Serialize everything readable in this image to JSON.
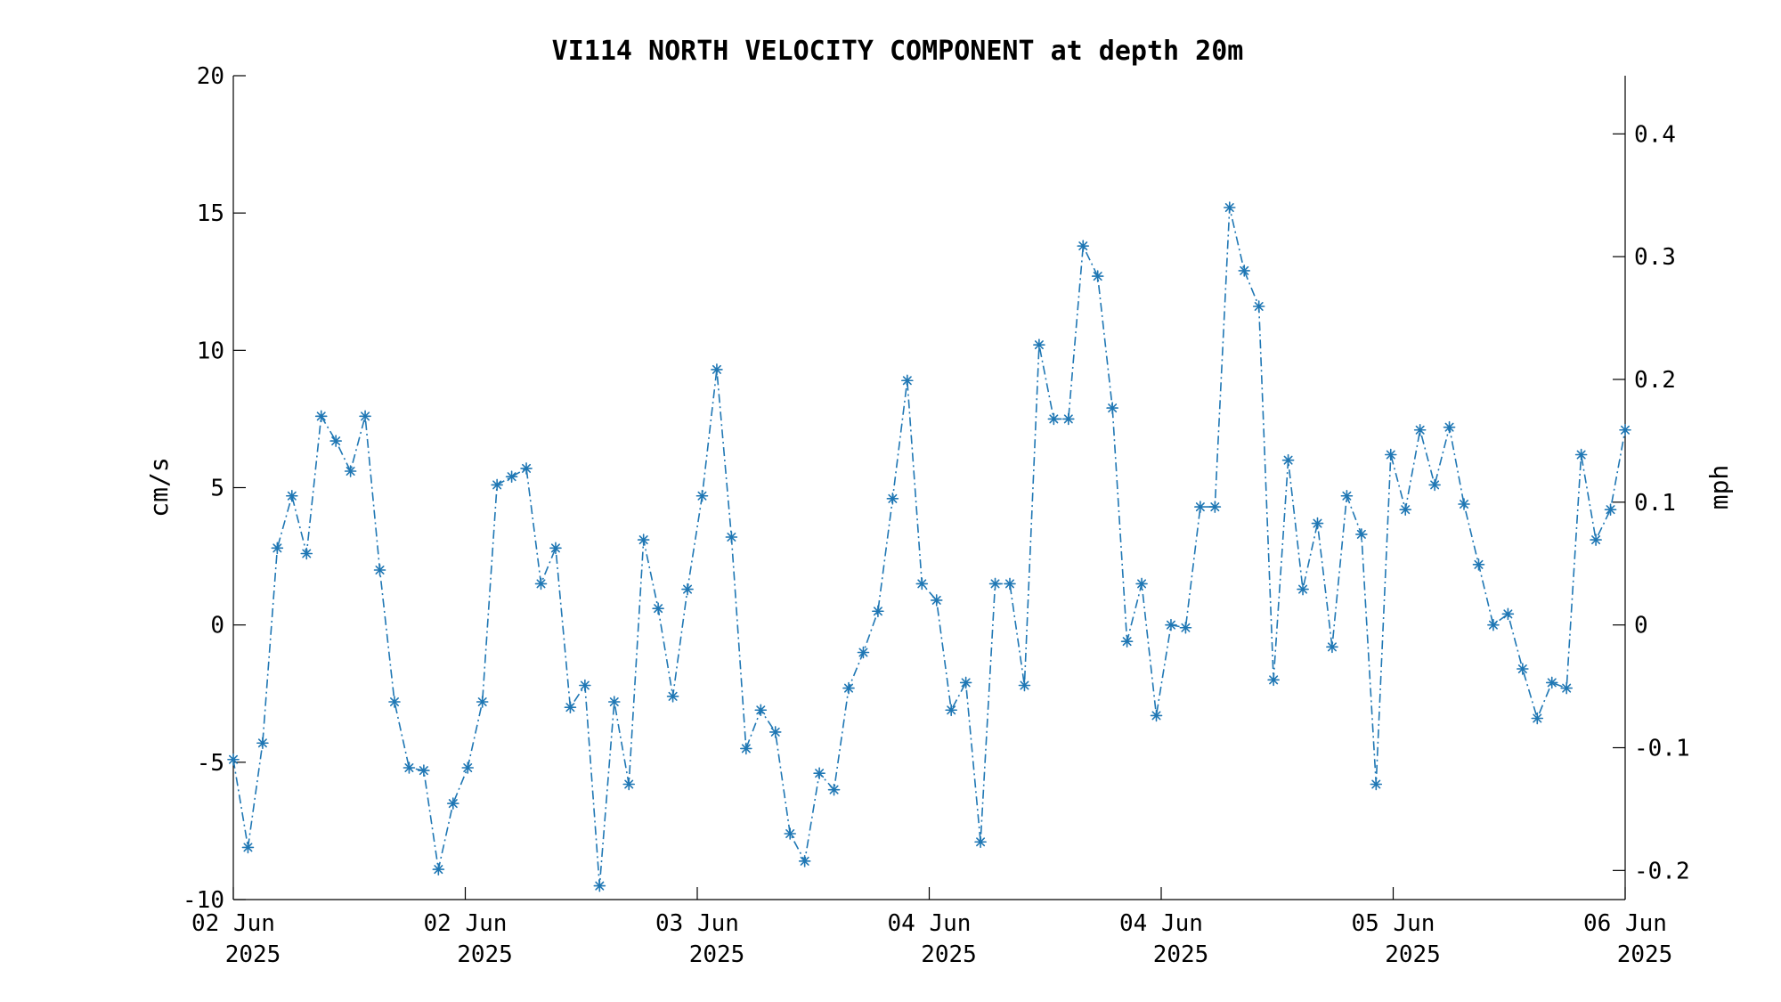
{
  "chart_data": {
    "type": "line",
    "title": "VI114 NORTH VELOCITY COMPONENT at depth 20m",
    "ylabel": "cm/s",
    "y2label": "mph",
    "ylim": [
      -10,
      20
    ],
    "yticks": [
      -10,
      -5,
      0,
      5,
      10,
      15,
      20
    ],
    "y2lim": [
      -0.2237,
      0.4474
    ],
    "y2ticks": [
      -0.2,
      -0.1,
      0,
      0.1,
      0.2,
      0.3,
      0.4
    ],
    "xlim": [
      0,
      96
    ],
    "xticks": [
      {
        "t": 0,
        "line1": "02 Jun",
        "line2": "2025"
      },
      {
        "t": 16,
        "line1": "02 Jun",
        "line2": "2025"
      },
      {
        "t": 32,
        "line1": "03 Jun",
        "line2": "2025"
      },
      {
        "t": 48,
        "line1": "04 Jun",
        "line2": "2025"
      },
      {
        "t": 64,
        "line1": "04 Jun",
        "line2": "2025"
      },
      {
        "t": 80,
        "line1": "05 Jun",
        "line2": "2025"
      },
      {
        "t": 96,
        "line1": "06 Jun",
        "line2": "2025"
      }
    ],
    "color": "#1f77b4",
    "marker": "asterisk",
    "line_style": "dash-dot",
    "grid": false,
    "series": [
      {
        "values": [
          -4.9,
          -8.1,
          -4.3,
          2.8,
          4.7,
          2.6,
          7.6,
          6.7,
          5.6,
          7.6,
          2.0,
          -2.8,
          -5.2,
          -5.3,
          -8.9,
          -6.5,
          -5.2,
          -2.8,
          5.1,
          5.4,
          5.7,
          1.5,
          2.8,
          -3.0,
          -2.2,
          -9.5,
          -2.8,
          -5.8,
          3.1,
          0.6,
          -2.6,
          1.3,
          4.7,
          9.3,
          3.2,
          -4.5,
          -3.1,
          -3.9,
          -7.6,
          -8.6,
          -5.4,
          -6.0,
          -2.3,
          -1.0,
          0.5,
          4.6,
          8.9,
          1.5,
          0.9,
          -3.1,
          -2.1,
          -7.9,
          1.5,
          1.5,
          -2.2,
          10.2,
          7.5,
          7.5,
          13.8,
          12.7,
          7.9,
          -0.6,
          1.5,
          -3.3,
          0.0,
          -0.1,
          4.3,
          4.3,
          15.2,
          12.9,
          11.6,
          -2.0,
          6.0,
          1.3,
          3.7,
          -0.8,
          4.7,
          3.3,
          -5.8,
          6.2,
          4.2,
          7.1,
          5.1,
          7.2,
          4.4,
          2.2,
          0.0,
          0.4,
          -1.6,
          -3.4,
          -2.1,
          -2.3,
          6.2,
          3.1,
          4.2,
          7.1
        ]
      }
    ]
  }
}
